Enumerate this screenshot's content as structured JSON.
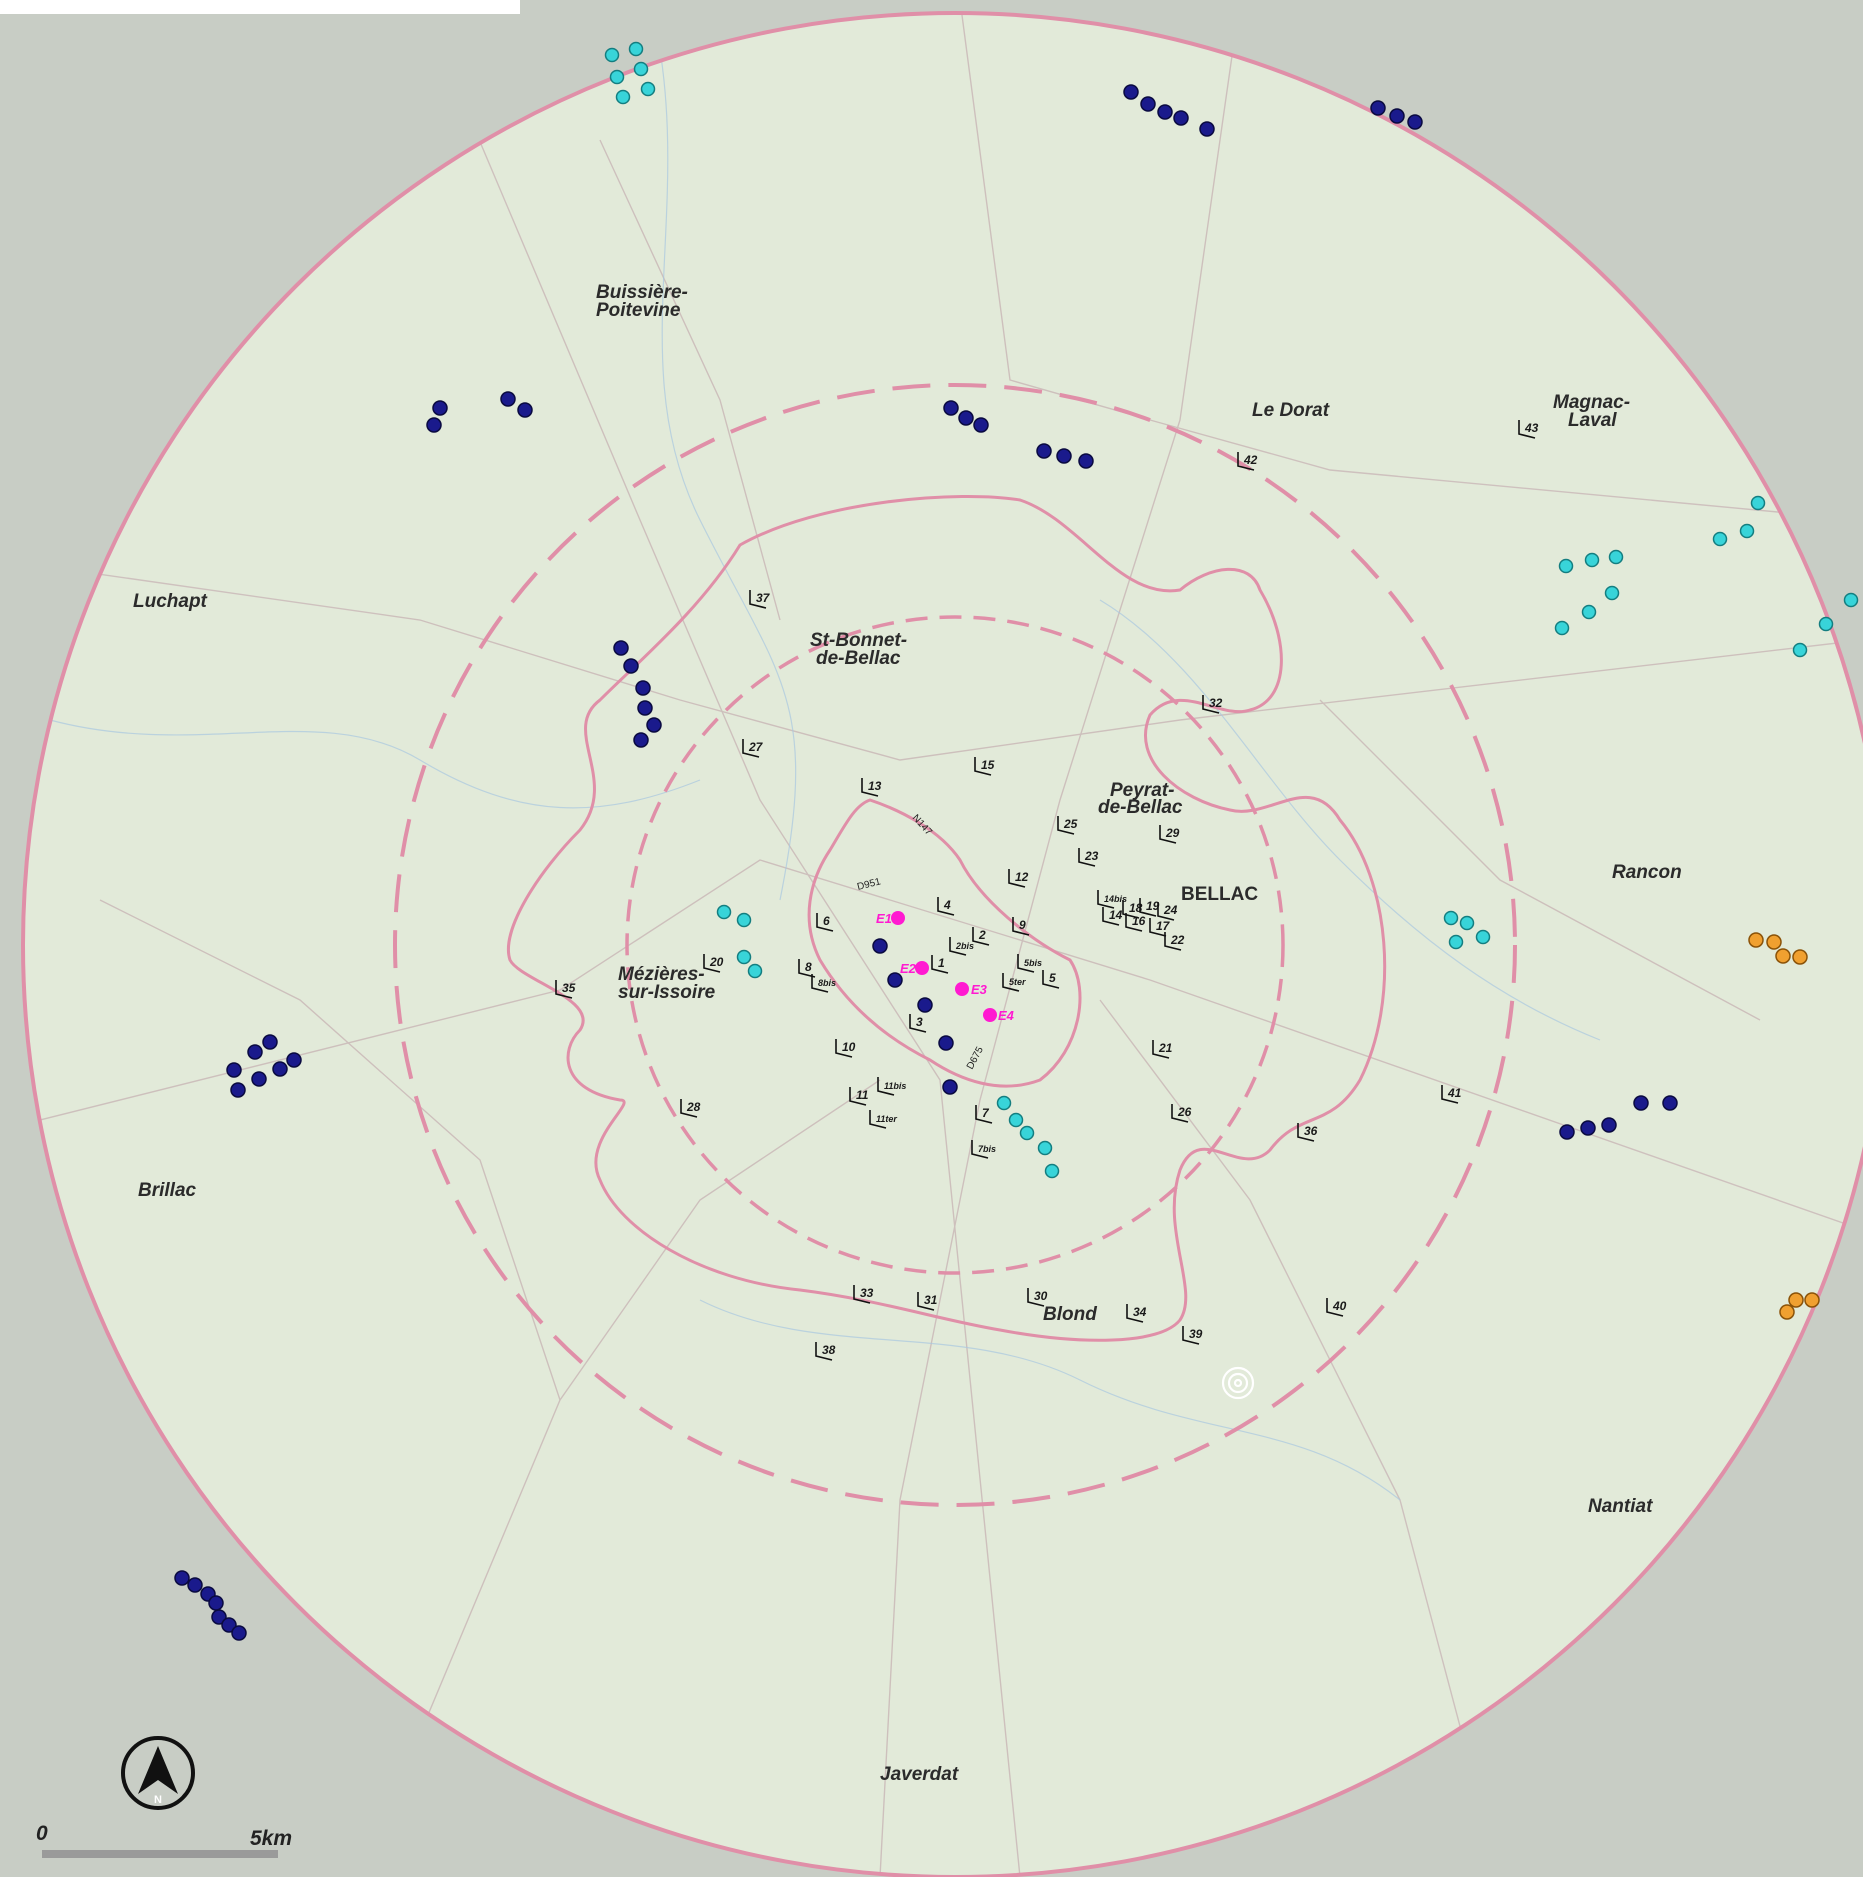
{
  "towns": [
    {
      "id": "buissiere",
      "lines": [
        "Buissière-",
        "Poitevine"
      ]
    },
    {
      "id": "le-dorat",
      "lines": [
        "Le Dorat"
      ]
    },
    {
      "id": "magnac",
      "lines": [
        "Magnac-",
        "Laval"
      ]
    },
    {
      "id": "luchapt",
      "lines": [
        "Luchapt"
      ]
    },
    {
      "id": "st-bonnet",
      "lines": [
        "St-Bonnet-",
        "de-Bellac"
      ]
    },
    {
      "id": "peyrat",
      "lines": [
        "Peyrat-",
        "de-Bellac"
      ]
    },
    {
      "id": "bellac",
      "lines": [
        "BELLAC"
      ]
    },
    {
      "id": "rancon",
      "lines": [
        "Rancon"
      ]
    },
    {
      "id": "mezieres",
      "lines": [
        "Mézières-",
        "sur-Issoire"
      ]
    },
    {
      "id": "brillac",
      "lines": [
        "Brillac"
      ]
    },
    {
      "id": "blond",
      "lines": [
        "Blond"
      ]
    },
    {
      "id": "nantiat",
      "lines": [
        "Nantiat"
      ]
    },
    {
      "id": "javerdat",
      "lines": [
        "Javerdat"
      ]
    }
  ],
  "project_turbines": [
    "E1",
    "E2",
    "E3",
    "E4"
  ],
  "roads": [
    "N147",
    "D951",
    "D675"
  ],
  "viewpoints": [
    "1",
    "2",
    "2bis",
    "3",
    "4",
    "5",
    "5bis",
    "5ter",
    "6",
    "7",
    "7bis",
    "8",
    "8bis",
    "9",
    "10",
    "11",
    "11bis",
    "11ter",
    "12",
    "13",
    "14",
    "14bis",
    "15",
    "16",
    "17",
    "18",
    "19",
    "20",
    "21",
    "22",
    "23",
    "24",
    "25",
    "26",
    "27",
    "28",
    "29",
    "30",
    "31",
    "32",
    "33",
    "34",
    "35",
    "36",
    "37",
    "38",
    "39",
    "40",
    "41",
    "42",
    "43"
  ],
  "scale_bar": {
    "start": "0",
    "end": "5km"
  },
  "north_arrow": {
    "letter": "N"
  },
  "colors": {
    "study_area": "#dfe8d6",
    "outside_area": "#c9cec7",
    "perimeter": "#e08fa8",
    "wind_farm_built": "#1a1a8c",
    "wind_farm_authorized": "#38d4d9",
    "wind_farm_pending": "#f0a030",
    "project_turbine": "#ff1ad1"
  }
}
